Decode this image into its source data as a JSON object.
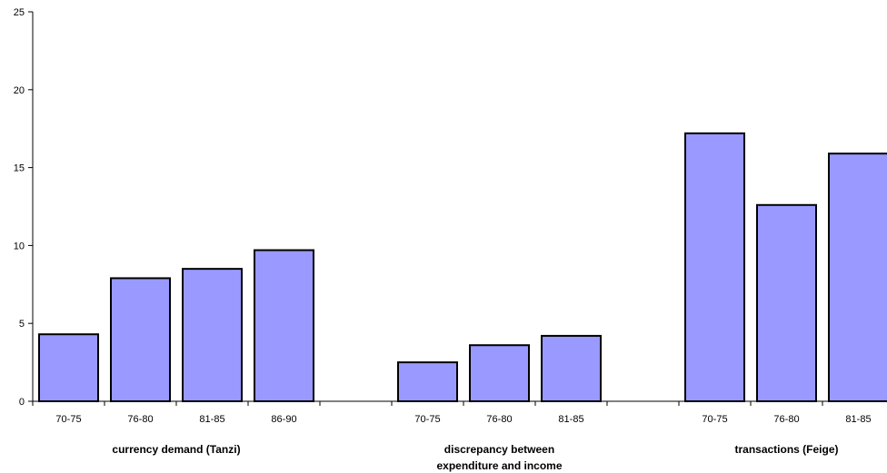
{
  "chart_data": {
    "type": "bar",
    "title": "",
    "xlabel": "",
    "ylabel": "",
    "ylim": [
      0,
      25
    ],
    "yticks": [
      0,
      5,
      10,
      15,
      20,
      25
    ],
    "grid": false,
    "legend": "none",
    "bar_color": "#9999ff",
    "bar_edge_color": "#000000",
    "groups": [
      {
        "label_lines": [
          "currency demand (Tanzi)"
        ],
        "categories": [
          "70-75",
          "76-80",
          "81-85",
          "86-90"
        ],
        "values": [
          4.3,
          7.9,
          8.5,
          9.7
        ]
      },
      {
        "label_lines": [
          "discrepancy between",
          "expenditure and income"
        ],
        "categories": [
          "70-75",
          "76-80",
          "81-85"
        ],
        "values": [
          2.5,
          3.6,
          4.2
        ]
      },
      {
        "label_lines": [
          "transactions (Feige)"
        ],
        "categories": [
          "70-75",
          "76-80",
          "81-85"
        ],
        "values": [
          17.2,
          12.6,
          15.9
        ]
      }
    ]
  }
}
